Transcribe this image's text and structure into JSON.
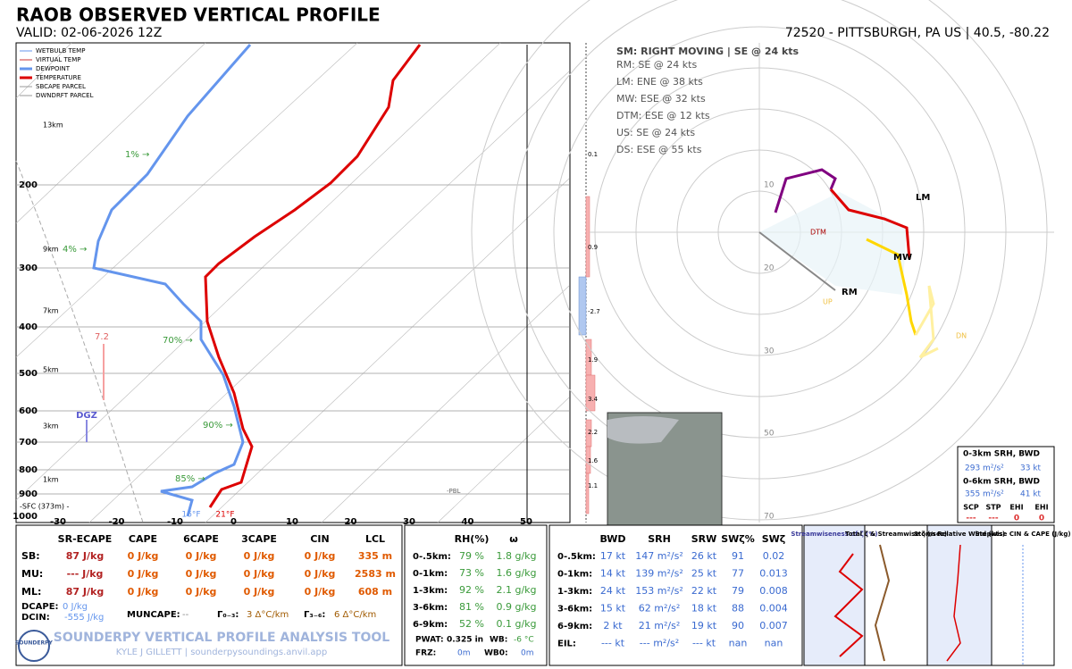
{
  "header": {
    "title": "RAOB OBSERVED VERTICAL PROFILE",
    "valid": "VALID: 02-06-2026 12Z",
    "station": "72520 - PITTSBURGH, PA US | 40.5, -80.22"
  },
  "legend": [
    "WETBULB TEMP",
    "VIRTUAL TEMP",
    "DEWPOINT",
    "TEMPERATURE",
    "SBCAPE PARCEL",
    "DWNDRFT PARCEL"
  ],
  "skewt": {
    "pressure_labels": [
      "200",
      "300",
      "400",
      "500",
      "600",
      "700",
      "800",
      "900",
      "1000"
    ],
    "temp_labels": [
      "-30",
      "-20",
      "-10",
      "0",
      "10",
      "20",
      "30",
      "40",
      "50"
    ],
    "height_labels": [
      "13km",
      "9km",
      "7km",
      "5km",
      "3km",
      "1km",
      "-SFC (373m) -"
    ],
    "rh_labels": [
      "1% →",
      "4% →",
      "70% →",
      "90% →",
      "85% →"
    ],
    "dgz_value": "7.2",
    "dgz": "DGZ",
    "sfc_dew": "16°F",
    "sfc_temp": "21°F",
    "theta_labels": [
      "0.1",
      "0.9",
      "-2.7",
      "1.9",
      "3.4",
      "2.2",
      "1.6",
      "1.1"
    ],
    "pbl": "-PBL"
  },
  "hodograph": {
    "storm_motion": "SM: RIGHT MOVING | SE @ 24 kts",
    "motions": [
      "RM: SE @ 24 kts",
      "LM: ENE @ 38 kts",
      "MW: ESE @ 32 kts",
      "DTM: ESE @ 12 kts",
      "US: SE @ 24 kts",
      "DS: ESE @ 55 kts"
    ],
    "ring_labels": [
      "10",
      "20",
      "30",
      "50",
      "70"
    ],
    "markers": [
      "LM",
      "MW",
      "RM",
      "DTM",
      "UP",
      "DN"
    ],
    "inset": {
      "h1": "0-3km SRH,  BWD",
      "srh3": "293 m²/s²",
      "bwd3": "33 kt",
      "h2": "0-6km SRH,  BWD",
      "srh6": "355 m²/s²",
      "bwd6": "41 kt",
      "indices": [
        "SCP",
        "STP",
        "EHI",
        "EHI"
      ],
      "index_values": [
        "---",
        "---",
        "0",
        "0"
      ]
    }
  },
  "thermo": {
    "headers": [
      "SR-ECAPE",
      "CAPE",
      "6CAPE",
      "3CAPE",
      "CIN",
      "LCL"
    ],
    "rows": [
      [
        "SB:",
        "87 J/kg",
        "0 J/kg",
        "0 J/kg",
        "0 J/kg",
        "0 J/kg",
        "335 m"
      ],
      [
        "MU:",
        "--- J/kg",
        "0 J/kg",
        "0 J/kg",
        "0 J/kg",
        "0 J/kg",
        "2583 m"
      ],
      [
        "ML:",
        "87 J/kg",
        "0 J/kg",
        "0 J/kg",
        "0 J/kg",
        "0 J/kg",
        "608 m"
      ]
    ],
    "dcape": [
      "DCAPE:",
      "0 J/kg"
    ],
    "dcin": [
      "DCIN:",
      "-555 J/kg"
    ],
    "muncape": [
      "MUNCAPE:",
      "--"
    ],
    "lapse03": [
      "Γ₀₋₃:",
      "3 Δ°C/km"
    ],
    "lapse36": [
      "Γ₃₋₆:",
      "6 Δ°C/km"
    ]
  },
  "moisture": {
    "headers": [
      "RH(%)",
      "ω"
    ],
    "rows": [
      [
        "0-.5km:",
        "79 %",
        "1.8 g/kg"
      ],
      [
        "0-1km:",
        "73 %",
        "1.6 g/kg"
      ],
      [
        "1-3km:",
        "92 %",
        "2.1 g/kg"
      ],
      [
        "3-6km:",
        "81 %",
        "0.9 g/kg"
      ],
      [
        "6-9km:",
        "52 %",
        "0.1 g/kg"
      ]
    ],
    "pwat": [
      "PWAT:",
      "0.325 in"
    ],
    "wb": [
      "WB:",
      "-6 °C"
    ],
    "frz": [
      "FRZ:",
      "0m"
    ],
    "wb0": [
      "WB0:",
      "0m"
    ]
  },
  "kinematic": {
    "headers": [
      "BWD",
      "SRH",
      "SRW",
      "SWζ%",
      "SWζ"
    ],
    "rows": [
      [
        "0-.5km:",
        "17 kt",
        "147 m²/s²",
        "26 kt",
        "91",
        "0.02"
      ],
      [
        "0-1km:",
        "14 kt",
        "139 m²/s²",
        "25 kt",
        "77",
        "0.013"
      ],
      [
        "1-3km:",
        "24 kt",
        "153 m²/s²",
        "22 kt",
        "79",
        "0.008"
      ],
      [
        "3-6km:",
        "15 kt",
        "62 m²/s²",
        "18 kt",
        "88",
        "0.004"
      ],
      [
        "6-9km:",
        "2 kt",
        "21 m²/s²",
        "19 kt",
        "90",
        "0.007"
      ],
      [
        "EIL:",
        "--- kt",
        "--- m²/s²",
        "--- kt",
        "nan",
        "nan"
      ]
    ]
  },
  "panels": [
    "Streamwiseness of ζ (%)",
    "Total ζ & Streamwise ζ (/sec)",
    "Storm Relative Wind (kts)",
    "Stepwise CIN & CAPE (J/kg)"
  ],
  "footer": {
    "tool": "SOUNDERPY VERTICAL PROFILE ANALYSIS TOOL",
    "author": "KYLE J GILLETT | sounderpysoundings.anvil.app",
    "logo": "SOUNDERPY"
  }
}
